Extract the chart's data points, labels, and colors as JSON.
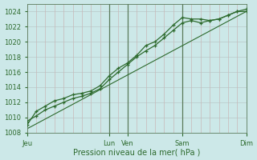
{
  "title": "",
  "xlabel": "Pression niveau de la mer( hPa )",
  "ylabel": "",
  "background_color": "#cce8e8",
  "grid_color_h": "#b8c8c8",
  "grid_color_v": "#c8b8b8",
  "line_color": "#2d6a2d",
  "vline_color": "#5a7a5a",
  "ylim": [
    1008,
    1025
  ],
  "yticks": [
    1008,
    1010,
    1012,
    1014,
    1016,
    1018,
    1020,
    1022,
    1024
  ],
  "x_day_labels": [
    "Jeu",
    "Lun",
    "Ven",
    "Sam",
    "Dim"
  ],
  "x_day_positions": [
    0,
    4.5,
    5.5,
    8.5,
    12
  ],
  "vline_positions": [
    4.5,
    5.5,
    8.5
  ],
  "xlim": [
    0,
    12
  ],
  "series1_x": [
    0,
    0.5,
    1.0,
    1.5,
    2.0,
    2.5,
    3.0,
    3.5,
    4.0,
    4.5,
    5.0,
    5.5,
    6.0,
    6.5,
    7.0,
    7.5,
    8.0,
    8.5,
    9.0,
    9.5,
    10.0,
    10.5,
    11.0,
    11.5,
    12.0
  ],
  "series1_y": [
    1009.5,
    1010.2,
    1011.0,
    1011.5,
    1012.0,
    1012.5,
    1012.8,
    1013.2,
    1013.8,
    1015.0,
    1016.0,
    1017.0,
    1018.0,
    1018.8,
    1019.5,
    1020.5,
    1021.5,
    1022.5,
    1022.8,
    1022.5,
    1022.8,
    1023.0,
    1023.5,
    1024.0,
    1024.3
  ],
  "series2_x": [
    0,
    0.5,
    1.0,
    1.5,
    2.0,
    2.5,
    3.0,
    3.5,
    4.0,
    4.5,
    5.0,
    5.5,
    6.0,
    6.5,
    7.0,
    7.5,
    8.0,
    8.5,
    9.0,
    9.5,
    10.0,
    10.5,
    11.0,
    11.5,
    12.0
  ],
  "series2_y": [
    1009.0,
    1010.8,
    1011.5,
    1012.2,
    1012.5,
    1013.0,
    1013.2,
    1013.5,
    1014.2,
    1015.5,
    1016.5,
    1017.2,
    1018.2,
    1019.5,
    1020.0,
    1021.0,
    1022.2,
    1023.2,
    1023.0,
    1023.0,
    1022.8,
    1023.0,
    1023.5,
    1024.0,
    1024.0
  ],
  "series3_x": [
    0,
    12
  ],
  "series3_y": [
    1008.5,
    1024.0
  ],
  "n_vgrid": 24,
  "n_hgrid": 8
}
